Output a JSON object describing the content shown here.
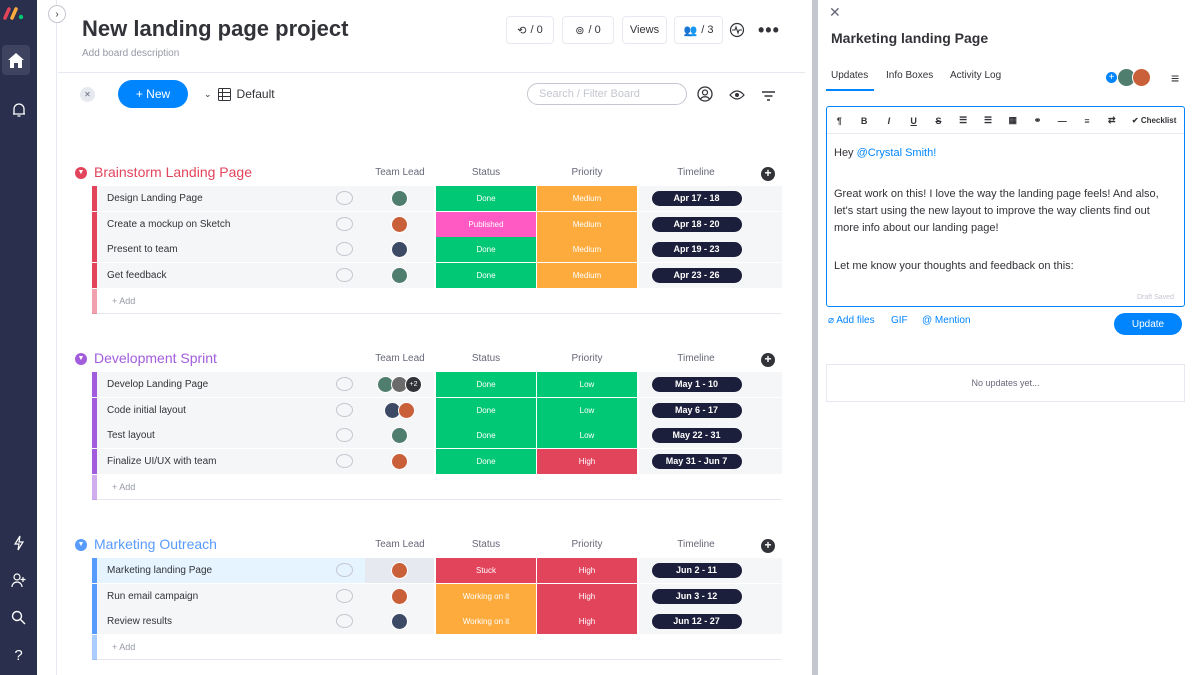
{
  "colors": {
    "done": "#00c875",
    "published": "#ff5ac4",
    "stuck": "#e2445c",
    "working": "#fdab3d",
    "medium": "#fdab3d",
    "low": "#00c875",
    "high": "#e2445c",
    "accent": "#0085ff",
    "nav": "#292f4c"
  },
  "header": {
    "title": "New landing page project",
    "description": "Add board description",
    "automations": "/ 0",
    "integrations": "/ 0",
    "views": "Views",
    "members": "/ 3"
  },
  "toolbar": {
    "new_label": "+ New",
    "view_label": "Default",
    "search_placeholder": "Search / Filter Board"
  },
  "columns": {
    "lead": "Team Lead",
    "status": "Status",
    "priority": "Priority",
    "timeline": "Timeline"
  },
  "add_item": "+ Add",
  "groups": [
    {
      "title": "Brainstorm Landing Page",
      "color": "#e2445c",
      "rows": [
        {
          "name": "Design Landing Page",
          "status": "Done",
          "priority": "Medium",
          "timeline": "Apr 17 - 18"
        },
        {
          "name": "Create a mockup on Sketch",
          "status": "Published",
          "priority": "Medium",
          "timeline": "Apr 18 - 20"
        },
        {
          "name": "Present to team",
          "status": "Done",
          "priority": "Medium",
          "timeline": "Apr 19 - 23"
        },
        {
          "name": "Get feedback",
          "status": "Done",
          "priority": "Medium",
          "timeline": "Apr 23 - 26"
        }
      ]
    },
    {
      "title": "Development Sprint",
      "color": "#a25ddc",
      "rows": [
        {
          "name": "Develop Landing Page",
          "status": "Done",
          "priority": "Low",
          "timeline": "May 1 - 10",
          "extra": "+2"
        },
        {
          "name": "Code initial layout",
          "status": "Done",
          "priority": "Low",
          "timeline": "May 6 - 17"
        },
        {
          "name": "Test layout",
          "status": "Done",
          "priority": "Low",
          "timeline": "May 22 - 31"
        },
        {
          "name": "Finalize UI/UX with team",
          "status": "Done",
          "priority": "High",
          "timeline": "May 31 - Jun 7"
        }
      ]
    },
    {
      "title": "Marketing Outreach",
      "color": "#579bfc",
      "rows": [
        {
          "name": "Marketing landing Page",
          "status": "Stuck",
          "priority": "High",
          "timeline": "Jun 2 - 11"
        },
        {
          "name": "Run email campaign",
          "status": "Working on it",
          "priority": "High",
          "timeline": "Jun 3 - 12"
        },
        {
          "name": "Review results",
          "status": "Working on it",
          "priority": "High",
          "timeline": "Jun 12 - 27"
        }
      ]
    }
  ],
  "panel": {
    "title": "Marketing landing Page",
    "tabs": [
      "Updates",
      "Info Boxes",
      "Activity Log"
    ],
    "checklist": "Checklist",
    "greeting_pre": "Hey ",
    "mention": "@Crystal Smith!",
    "paragraph1": "Great work on this! I love the way the landing page feels! And also, let's start using the new layout to improve the way clients find out more info about our landing page!",
    "paragraph2": "Let me know your thoughts and feedback on this:",
    "draft": "Draft Saved",
    "add_files": "Add files",
    "gif": "GIF",
    "mention_btn": "@ Mention",
    "update_btn": "Update",
    "no_updates": "No updates yet..."
  }
}
